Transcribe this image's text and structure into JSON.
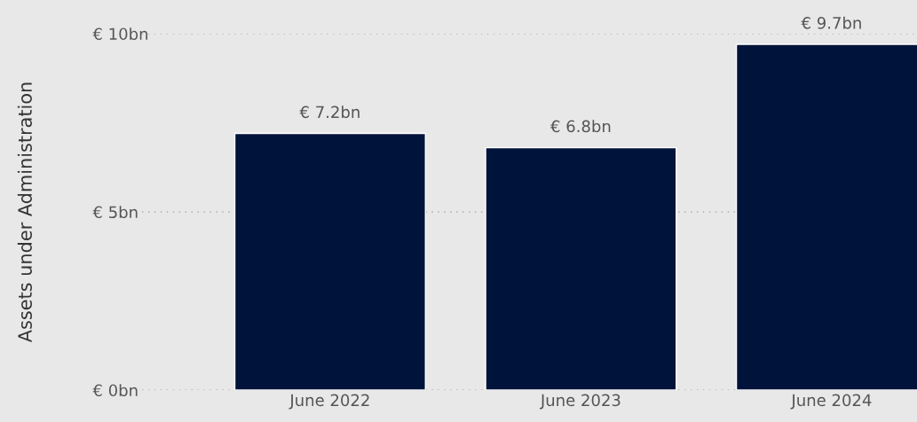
{
  "chart_data": {
    "type": "bar",
    "ylabel": "Assets under Administration",
    "categories": [
      "June 2022",
      "June 2023",
      "June 2024"
    ],
    "values": [
      7.2,
      6.8,
      9.7
    ],
    "color": "#00133a",
    "value_labels": [
      "€ 7.2bn",
      "€ 6.8bn",
      "€ 9.7bn"
    ],
    "ylim": [
      0,
      10
    ],
    "yticks": [
      {
        "value": 0,
        "label": "€ 0bn"
      },
      {
        "value": 5,
        "label": "€ 5bn"
      },
      {
        "value": 10,
        "label": "€ 10bn"
      }
    ],
    "grid": "y",
    "legend": false
  }
}
